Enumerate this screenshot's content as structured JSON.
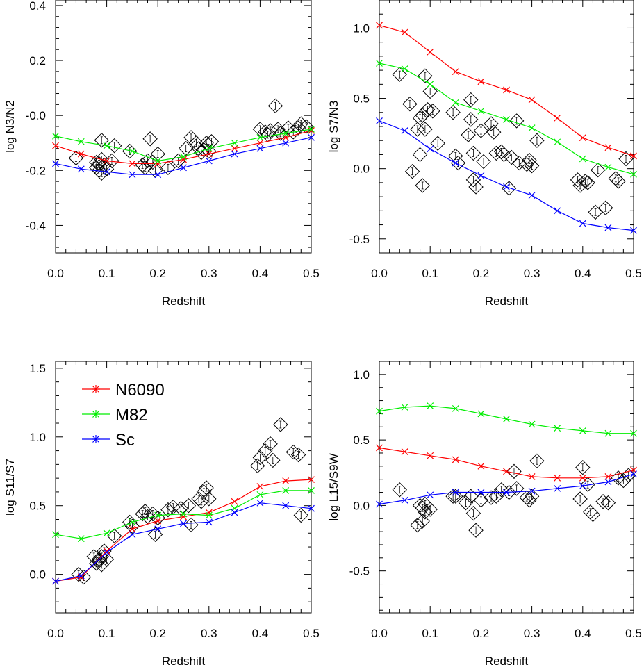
{
  "chart_data": [
    {
      "type": "scatter",
      "ylabel": "log N3/N2",
      "xlabel": "Redshift",
      "xlim": [
        0,
        0.5
      ],
      "ylim": [
        -0.5,
        0.42
      ],
      "xticks": [
        "0.0",
        "0.1",
        "0.2",
        "0.3",
        "0.4",
        "0.5"
      ],
      "yticks": [
        {
          "v": 0.4,
          "t": "0.4"
        },
        {
          "v": 0.2,
          "t": "0.2"
        },
        {
          "v": 0.0,
          "t": "-0.0"
        },
        {
          "v": -0.2,
          "t": "-0.2"
        },
        {
          "v": -0.4,
          "t": "-0.4"
        }
      ],
      "series": [
        {
          "name": "N6090",
          "color": "#ff0000",
          "x": [
            0,
            0.05,
            0.1,
            0.15,
            0.2,
            0.25,
            0.3,
            0.35,
            0.4,
            0.45,
            0.5
          ],
          "y": [
            -0.11,
            -0.14,
            -0.165,
            -0.175,
            -0.175,
            -0.16,
            -0.14,
            -0.12,
            -0.1,
            -0.08,
            -0.055
          ]
        },
        {
          "name": "M82",
          "color": "#00ee00",
          "x": [
            0,
            0.05,
            0.1,
            0.15,
            0.2,
            0.25,
            0.3,
            0.35,
            0.4,
            0.45,
            0.5
          ],
          "y": [
            -0.075,
            -0.095,
            -0.11,
            -0.13,
            -0.165,
            -0.15,
            -0.12,
            -0.1,
            -0.08,
            -0.065,
            -0.05
          ]
        },
        {
          "name": "Sc",
          "color": "#0000ff",
          "x": [
            0,
            0.05,
            0.1,
            0.15,
            0.2,
            0.25,
            0.3,
            0.35,
            0.4,
            0.45,
            0.5
          ],
          "y": [
            -0.175,
            -0.195,
            -0.205,
            -0.215,
            -0.215,
            -0.19,
            -0.165,
            -0.14,
            -0.12,
            -0.1,
            -0.08
          ]
        }
      ],
      "points": [
        {
          "x": 0.04,
          "y": -0.155
        },
        {
          "x": 0.08,
          "y": -0.17
        },
        {
          "x": 0.08,
          "y": -0.19
        },
        {
          "x": 0.085,
          "y": -0.2
        },
        {
          "x": 0.085,
          "y": -0.175
        },
        {
          "x": 0.09,
          "y": -0.21
        },
        {
          "x": 0.09,
          "y": -0.16
        },
        {
          "x": 0.09,
          "y": -0.09
        },
        {
          "x": 0.095,
          "y": -0.18
        },
        {
          "x": 0.1,
          "y": -0.195
        },
        {
          "x": 0.11,
          "y": -0.165
        },
        {
          "x": 0.115,
          "y": -0.11
        },
        {
          "x": 0.145,
          "y": -0.13
        },
        {
          "x": 0.17,
          "y": -0.18
        },
        {
          "x": 0.175,
          "y": -0.19
        },
        {
          "x": 0.18,
          "y": -0.165
        },
        {
          "x": 0.185,
          "y": -0.085
        },
        {
          "x": 0.19,
          "y": -0.17
        },
        {
          "x": 0.195,
          "y": -0.2
        },
        {
          "x": 0.2,
          "y": -0.14
        },
        {
          "x": 0.22,
          "y": -0.19
        },
        {
          "x": 0.24,
          "y": -0.165
        },
        {
          "x": 0.255,
          "y": -0.12
        },
        {
          "x": 0.265,
          "y": -0.08
        },
        {
          "x": 0.275,
          "y": -0.1
        },
        {
          "x": 0.28,
          "y": -0.12
        },
        {
          "x": 0.285,
          "y": -0.135
        },
        {
          "x": 0.29,
          "y": -0.125
        },
        {
          "x": 0.295,
          "y": -0.1
        },
        {
          "x": 0.3,
          "y": -0.13
        },
        {
          "x": 0.305,
          "y": -0.095
        },
        {
          "x": 0.4,
          "y": -0.05
        },
        {
          "x": 0.41,
          "y": -0.06
        },
        {
          "x": 0.415,
          "y": -0.07
        },
        {
          "x": 0.42,
          "y": -0.055
        },
        {
          "x": 0.43,
          "y": 0.035
        },
        {
          "x": 0.435,
          "y": -0.05
        },
        {
          "x": 0.44,
          "y": -0.065
        },
        {
          "x": 0.455,
          "y": -0.045
        },
        {
          "x": 0.465,
          "y": -0.06
        },
        {
          "x": 0.475,
          "y": -0.045
        },
        {
          "x": 0.48,
          "y": -0.03
        },
        {
          "x": 0.49,
          "y": -0.04
        }
      ]
    },
    {
      "type": "scatter",
      "ylabel": "log S7/N3",
      "xlabel": "Redshift",
      "xlim": [
        0,
        0.5
      ],
      "ylim": [
        -0.6,
        1.2
      ],
      "xticks": [
        "0.0",
        "0.1",
        "0.2",
        "0.3",
        "0.4",
        "0.5"
      ],
      "yticks": [
        {
          "v": 1.0,
          "t": "1.0"
        },
        {
          "v": 0.5,
          "t": "0.5"
        },
        {
          "v": 0.0,
          "t": "0.0"
        },
        {
          "v": -0.5,
          "t": "-0.5"
        }
      ],
      "series": [
        {
          "name": "N6090",
          "color": "#ff0000",
          "x": [
            0,
            0.05,
            0.1,
            0.15,
            0.2,
            0.25,
            0.3,
            0.35,
            0.4,
            0.45,
            0.5
          ],
          "y": [
            1.02,
            0.97,
            0.83,
            0.69,
            0.62,
            0.56,
            0.49,
            0.36,
            0.22,
            0.15,
            0.09
          ]
        },
        {
          "name": "M82",
          "color": "#00ee00",
          "x": [
            0,
            0.05,
            0.1,
            0.15,
            0.2,
            0.25,
            0.3,
            0.35,
            0.4,
            0.45,
            0.5
          ],
          "y": [
            0.75,
            0.71,
            0.6,
            0.47,
            0.41,
            0.35,
            0.29,
            0.19,
            0.07,
            0.01,
            -0.04
          ]
        },
        {
          "name": "Sc",
          "color": "#0000ff",
          "x": [
            0,
            0.05,
            0.1,
            0.15,
            0.2,
            0.25,
            0.3,
            0.35,
            0.4,
            0.45,
            0.5
          ],
          "y": [
            0.34,
            0.27,
            0.14,
            0.04,
            -0.05,
            -0.13,
            -0.19,
            -0.3,
            -0.39,
            -0.42,
            -0.44
          ]
        }
      ],
      "points": [
        {
          "x": 0.04,
          "y": 0.67
        },
        {
          "x": 0.06,
          "y": 0.46
        },
        {
          "x": 0.065,
          "y": -0.02
        },
        {
          "x": 0.075,
          "y": 0.28
        },
        {
          "x": 0.08,
          "y": 0.36
        },
        {
          "x": 0.08,
          "y": 0.1
        },
        {
          "x": 0.085,
          "y": 0.38
        },
        {
          "x": 0.085,
          "y": -0.12
        },
        {
          "x": 0.09,
          "y": 0.66
        },
        {
          "x": 0.09,
          "y": 0.28
        },
        {
          "x": 0.095,
          "y": 0.42
        },
        {
          "x": 0.1,
          "y": 0.55
        },
        {
          "x": 0.105,
          "y": 0.41
        },
        {
          "x": 0.115,
          "y": 0.18
        },
        {
          "x": 0.145,
          "y": 0.4
        },
        {
          "x": 0.15,
          "y": 0.09
        },
        {
          "x": 0.155,
          "y": 0.04
        },
        {
          "x": 0.175,
          "y": 0.24
        },
        {
          "x": 0.18,
          "y": 0.49
        },
        {
          "x": 0.18,
          "y": 0.35
        },
        {
          "x": 0.185,
          "y": 0.11
        },
        {
          "x": 0.185,
          "y": -0.08
        },
        {
          "x": 0.19,
          "y": -0.13
        },
        {
          "x": 0.2,
          "y": 0.27
        },
        {
          "x": 0.205,
          "y": 0.05
        },
        {
          "x": 0.22,
          "y": 0.32
        },
        {
          "x": 0.225,
          "y": 0.26
        },
        {
          "x": 0.23,
          "y": 0.11
        },
        {
          "x": 0.24,
          "y": 0.12
        },
        {
          "x": 0.245,
          "y": 0.1
        },
        {
          "x": 0.255,
          "y": -0.14
        },
        {
          "x": 0.26,
          "y": 0.08
        },
        {
          "x": 0.27,
          "y": 0.34
        },
        {
          "x": 0.275,
          "y": 0.04
        },
        {
          "x": 0.29,
          "y": 0.03
        },
        {
          "x": 0.295,
          "y": 0.06
        },
        {
          "x": 0.3,
          "y": 0.02
        },
        {
          "x": 0.31,
          "y": 0.2
        },
        {
          "x": 0.39,
          "y": -0.08
        },
        {
          "x": 0.395,
          "y": -0.12
        },
        {
          "x": 0.405,
          "y": -0.09
        },
        {
          "x": 0.41,
          "y": -0.1
        },
        {
          "x": 0.425,
          "y": -0.31
        },
        {
          "x": 0.43,
          "y": -0.01
        },
        {
          "x": 0.445,
          "y": -0.28
        },
        {
          "x": 0.465,
          "y": -0.07
        },
        {
          "x": 0.47,
          "y": -0.09
        },
        {
          "x": 0.485,
          "y": 0.07
        }
      ]
    },
    {
      "type": "scatter",
      "ylabel": "log S11/S7",
      "xlabel": "Redshift",
      "xlim": [
        0,
        0.5
      ],
      "ylim": [
        -0.28,
        1.55
      ],
      "xticks": [
        "0.0",
        "0.1",
        "0.2",
        "0.3",
        "0.4",
        "0.5"
      ],
      "yticks": [
        {
          "v": 1.5,
          "t": "1.5"
        },
        {
          "v": 1.0,
          "t": "1.0"
        },
        {
          "v": 0.5,
          "t": "0.5"
        },
        {
          "v": 0.0,
          "t": "0.0"
        }
      ],
      "series": [
        {
          "name": "N6090",
          "color": "#ff0000",
          "x": [
            0,
            0.05,
            0.1,
            0.15,
            0.2,
            0.25,
            0.3,
            0.35,
            0.4,
            0.45,
            0.5
          ],
          "y": [
            -0.05,
            -0.02,
            0.17,
            0.33,
            0.39,
            0.42,
            0.45,
            0.53,
            0.64,
            0.68,
            0.69
          ]
        },
        {
          "name": "M82",
          "color": "#00ee00",
          "x": [
            0,
            0.05,
            0.1,
            0.15,
            0.2,
            0.25,
            0.3,
            0.35,
            0.4,
            0.45,
            0.5
          ],
          "y": [
            0.29,
            0.26,
            0.3,
            0.38,
            0.43,
            0.44,
            0.43,
            0.48,
            0.58,
            0.61,
            0.61
          ]
        },
        {
          "name": "Sc",
          "color": "#0000ff",
          "x": [
            0,
            0.05,
            0.1,
            0.15,
            0.2,
            0.25,
            0.3,
            0.35,
            0.4,
            0.45,
            0.5
          ],
          "y": [
            -0.05,
            -0.01,
            0.16,
            0.29,
            0.33,
            0.37,
            0.38,
            0.45,
            0.52,
            0.5,
            0.48
          ]
        }
      ],
      "points": [
        {
          "x": 0.045,
          "y": 0.0
        },
        {
          "x": 0.055,
          "y": -0.02
        },
        {
          "x": 0.075,
          "y": 0.13
        },
        {
          "x": 0.08,
          "y": 0.08
        },
        {
          "x": 0.085,
          "y": 0.11
        },
        {
          "x": 0.085,
          "y": 0.1
        },
        {
          "x": 0.09,
          "y": 0.07
        },
        {
          "x": 0.09,
          "y": 0.13
        },
        {
          "x": 0.095,
          "y": 0.17
        },
        {
          "x": 0.1,
          "y": 0.11
        },
        {
          "x": 0.115,
          "y": 0.28
        },
        {
          "x": 0.145,
          "y": 0.38
        },
        {
          "x": 0.15,
          "y": 0.35
        },
        {
          "x": 0.17,
          "y": 0.44
        },
        {
          "x": 0.175,
          "y": 0.46
        },
        {
          "x": 0.18,
          "y": 0.42
        },
        {
          "x": 0.19,
          "y": 0.44
        },
        {
          "x": 0.195,
          "y": 0.29
        },
        {
          "x": 0.2,
          "y": 0.41
        },
        {
          "x": 0.22,
          "y": 0.47
        },
        {
          "x": 0.23,
          "y": 0.49
        },
        {
          "x": 0.245,
          "y": 0.48
        },
        {
          "x": 0.26,
          "y": 0.5
        },
        {
          "x": 0.265,
          "y": 0.36
        },
        {
          "x": 0.28,
          "y": 0.55
        },
        {
          "x": 0.285,
          "y": 0.53
        },
        {
          "x": 0.29,
          "y": 0.6
        },
        {
          "x": 0.295,
          "y": 0.63
        },
        {
          "x": 0.3,
          "y": 0.55
        },
        {
          "x": 0.395,
          "y": 0.79
        },
        {
          "x": 0.4,
          "y": 0.85
        },
        {
          "x": 0.41,
          "y": 0.9
        },
        {
          "x": 0.42,
          "y": 0.95
        },
        {
          "x": 0.425,
          "y": 0.83
        },
        {
          "x": 0.44,
          "y": 1.09
        },
        {
          "x": 0.465,
          "y": 0.89
        },
        {
          "x": 0.475,
          "y": 0.87
        },
        {
          "x": 0.48,
          "y": 0.43
        }
      ]
    },
    {
      "type": "scatter",
      "ylabel": "log L15/S9W",
      "xlabel": "Redshift",
      "xlim": [
        0,
        0.5
      ],
      "ylim": [
        -0.82,
        1.1
      ],
      "xticks": [
        "0.0",
        "0.1",
        "0.2",
        "0.3",
        "0.4",
        "0.5"
      ],
      "yticks": [
        {
          "v": 1.0,
          "t": "1.0"
        },
        {
          "v": 0.5,
          "t": "0.5"
        },
        {
          "v": 0.0,
          "t": "0.0"
        },
        {
          "v": -0.5,
          "t": "-0.5"
        }
      ],
      "series": [
        {
          "name": "N6090",
          "color": "#ff0000",
          "x": [
            0,
            0.05,
            0.1,
            0.15,
            0.2,
            0.25,
            0.3,
            0.35,
            0.4,
            0.45,
            0.5
          ],
          "y": [
            0.44,
            0.41,
            0.38,
            0.35,
            0.3,
            0.26,
            0.22,
            0.21,
            0.21,
            0.22,
            0.27
          ]
        },
        {
          "name": "M82",
          "color": "#00ee00",
          "x": [
            0,
            0.05,
            0.1,
            0.15,
            0.2,
            0.25,
            0.3,
            0.35,
            0.4,
            0.45,
            0.5
          ],
          "y": [
            0.72,
            0.75,
            0.76,
            0.74,
            0.7,
            0.66,
            0.62,
            0.59,
            0.57,
            0.55,
            0.55
          ]
        },
        {
          "name": "Sc",
          "color": "#0000ff",
          "x": [
            0,
            0.05,
            0.1,
            0.15,
            0.2,
            0.25,
            0.3,
            0.35,
            0.4,
            0.45,
            0.5
          ],
          "y": [
            0.01,
            0.04,
            0.08,
            0.1,
            0.1,
            0.1,
            0.11,
            0.13,
            0.15,
            0.18,
            0.24
          ]
        }
      ],
      "points": [
        {
          "x": 0.04,
          "y": 0.12
        },
        {
          "x": 0.075,
          "y": -0.15
        },
        {
          "x": 0.08,
          "y": 0.0
        },
        {
          "x": 0.085,
          "y": -0.02
        },
        {
          "x": 0.085,
          "y": -0.12
        },
        {
          "x": 0.09,
          "y": 0.01
        },
        {
          "x": 0.09,
          "y": -0.05
        },
        {
          "x": 0.1,
          "y": -0.03
        },
        {
          "x": 0.145,
          "y": 0.07
        },
        {
          "x": 0.15,
          "y": 0.07
        },
        {
          "x": 0.17,
          "y": 0.02
        },
        {
          "x": 0.18,
          "y": 0.07
        },
        {
          "x": 0.185,
          "y": -0.06
        },
        {
          "x": 0.19,
          "y": -0.19
        },
        {
          "x": 0.2,
          "y": 0.04
        },
        {
          "x": 0.22,
          "y": 0.06
        },
        {
          "x": 0.23,
          "y": 0.07
        },
        {
          "x": 0.24,
          "y": 0.12
        },
        {
          "x": 0.255,
          "y": 0.1
        },
        {
          "x": 0.265,
          "y": 0.26
        },
        {
          "x": 0.27,
          "y": 0.13
        },
        {
          "x": 0.29,
          "y": 0.06
        },
        {
          "x": 0.295,
          "y": 0.04
        },
        {
          "x": 0.3,
          "y": 0.07
        },
        {
          "x": 0.31,
          "y": 0.34
        },
        {
          "x": 0.395,
          "y": 0.05
        },
        {
          "x": 0.4,
          "y": 0.29
        },
        {
          "x": 0.41,
          "y": 0.16
        },
        {
          "x": 0.415,
          "y": -0.05
        },
        {
          "x": 0.42,
          "y": -0.07
        },
        {
          "x": 0.44,
          "y": 0.03
        },
        {
          "x": 0.45,
          "y": 0.02
        },
        {
          "x": 0.47,
          "y": 0.21
        },
        {
          "x": 0.48,
          "y": 0.19
        },
        {
          "x": 0.49,
          "y": 0.23
        }
      ]
    }
  ],
  "legend": [
    {
      "label": "N6090",
      "color": "#ff0000"
    },
    {
      "label": "M82",
      "color": "#00ee00"
    },
    {
      "label": "Sc",
      "color": "#0000ff"
    }
  ]
}
